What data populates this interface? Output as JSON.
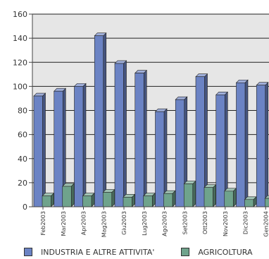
{
  "chart_data": {
    "type": "bar",
    "title": "",
    "xlabel": "",
    "ylabel": "",
    "ylim": [
      0,
      160
    ],
    "yticks": [
      0,
      20,
      40,
      60,
      80,
      100,
      120,
      140,
      160
    ],
    "grid": true,
    "legend_position": "bottom",
    "categories": [
      "Feb2003",
      "Mar2003",
      "Apr2003",
      "Mag2003",
      "Giu2003",
      "Lug2003",
      "Ago2003",
      "Set2003",
      "Ott2003",
      "Nov2003",
      "Dic2003",
      "Gen2004"
    ],
    "series": [
      {
        "name": "INDUSTRIA E ALTRE ATTIVITA'",
        "color": "#6b83c4",
        "values": [
          92,
          96,
          100,
          142,
          119,
          111,
          79,
          89,
          108,
          93,
          103,
          101
        ]
      },
      {
        "name": "AGRICOLTURA",
        "color": "#6fa38c",
        "values": [
          9,
          17,
          9,
          12,
          8,
          9,
          11,
          19,
          16,
          13,
          6,
          7
        ]
      }
    ]
  }
}
